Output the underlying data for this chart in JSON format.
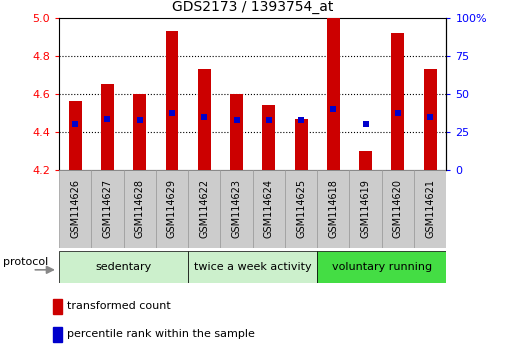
{
  "title": "GDS2173 / 1393754_at",
  "samples": [
    "GSM114626",
    "GSM114627",
    "GSM114628",
    "GSM114629",
    "GSM114622",
    "GSM114623",
    "GSM114624",
    "GSM114625",
    "GSM114618",
    "GSM114619",
    "GSM114620",
    "GSM114621"
  ],
  "red_values": [
    4.56,
    4.65,
    4.6,
    4.93,
    4.73,
    4.6,
    4.54,
    4.47,
    5.0,
    4.3,
    4.92,
    4.73
  ],
  "blue_values": [
    4.44,
    4.47,
    4.46,
    4.5,
    4.48,
    4.46,
    4.46,
    4.46,
    4.52,
    4.44,
    4.5,
    4.48
  ],
  "ymin": 4.2,
  "ymax": 5.0,
  "yleft_ticks": [
    4.2,
    4.4,
    4.6,
    4.8,
    5.0
  ],
  "yright_ticks": [
    0,
    25,
    50,
    75,
    100
  ],
  "bar_color": "#cc0000",
  "blue_color": "#0000cc",
  "base": 4.2,
  "bar_width": 0.4,
  "legend_red": "transformed count",
  "legend_blue": "percentile rank within the sample",
  "protocol_label": "protocol",
  "group_labels": [
    "sedentary",
    "twice a week activity",
    "voluntary running"
  ],
  "group_ranges": [
    [
      0,
      4
    ],
    [
      4,
      8
    ],
    [
      8,
      12
    ]
  ],
  "group_colors": [
    "#ccf0cc",
    "#ccf0cc",
    "#44dd44"
  ],
  "sample_box_color": "#cccccc",
  "sample_box_edge": "#999999",
  "title_fontsize": 10,
  "axis_fontsize": 8,
  "legend_fontsize": 8,
  "group_fontsize": 8,
  "sample_fontsize": 7
}
